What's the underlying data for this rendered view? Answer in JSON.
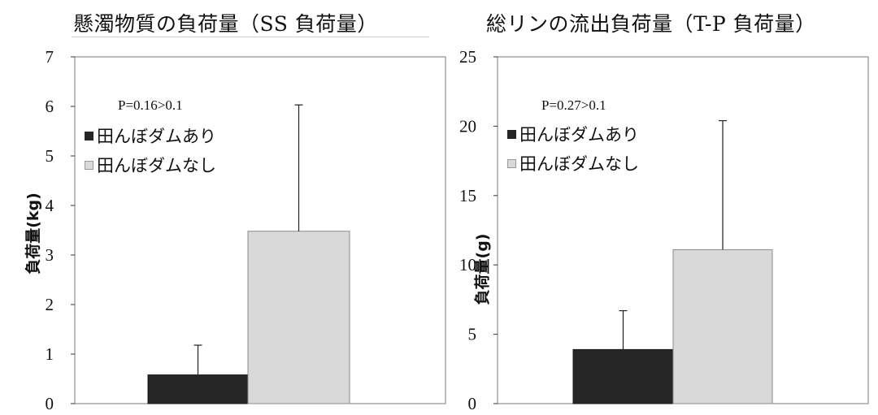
{
  "panels": [
    {
      "title": "懸濁物質の負荷量（SS 負荷量）",
      "ylabel": "負荷量(kg)",
      "pvalue": "P=0.16>0.1"
    },
    {
      "title": "総リンの流出負荷量（T-P 負荷量）",
      "ylabel": "負荷量(g)",
      "pvalue": "P=0.27>0.1"
    }
  ],
  "legend": [
    "田んぼダムあり",
    "田んぼダムなし"
  ],
  "colors": {
    "with_dam": "#262626",
    "without_dam": "#d9d9d9",
    "axis": "#333333"
  },
  "chart_data": [
    {
      "type": "bar",
      "title": "懸濁物質の負荷量（SS 負荷量）",
      "ylabel": "負荷量(kg)",
      "xlabel": "",
      "ylim": [
        0,
        7
      ],
      "yticks": [
        0,
        1,
        2,
        3,
        4,
        5,
        6,
        7
      ],
      "series": [
        {
          "name": "田んぼダムあり",
          "values": [
            0.58
          ],
          "error": [
            0.6
          ]
        },
        {
          "name": "田んぼダムなし",
          "values": [
            3.48
          ],
          "error": [
            2.55
          ]
        }
      ],
      "annotation": "P=0.16>0.1",
      "legend_position": "top-left",
      "grid": false
    },
    {
      "type": "bar",
      "title": "総リンの流出負荷量（T-P 負荷量）",
      "ylabel": "負荷量(g)",
      "xlabel": "",
      "ylim": [
        0,
        25
      ],
      "yticks": [
        0,
        5,
        10,
        15,
        20,
        25
      ],
      "series": [
        {
          "name": "田んぼダムあり",
          "values": [
            3.9
          ],
          "error": [
            2.8
          ]
        },
        {
          "name": "田んぼダムなし",
          "values": [
            11.1
          ],
          "error": [
            9.3
          ]
        }
      ],
      "annotation": "P=0.27>0.1",
      "legend_position": "top-left",
      "grid": false
    }
  ]
}
